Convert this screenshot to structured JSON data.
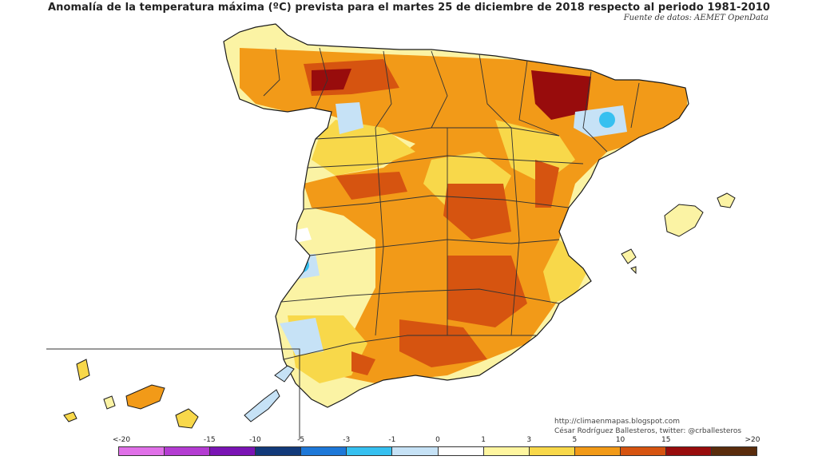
{
  "title": "Anomalía de la temperatura máxima (ºC) prevista para el martes 25 de diciembre de 2018 respecto al periodo 1981-2010",
  "source": "Fuente de datos: AEMET OpenData",
  "credit": {
    "url": "http://climaenmapas.blogspot.com",
    "author": "César Rodríguez Ballesteros, twitter: @crballesteros"
  },
  "legend": {
    "labels": [
      "<-20",
      "-15",
      "-10",
      "-5",
      "-3",
      "-1",
      "0",
      "1",
      "3",
      "5",
      "10",
      "15",
      ">20"
    ],
    "colors": [
      "#e070e8",
      "#b43cd2",
      "#7a14b4",
      "#123a7a",
      "#1e78d8",
      "#36c0f0",
      "#c6e2f6",
      "#ffffff",
      "#fff6a0",
      "#f8d84a",
      "#f29a18",
      "#d65410",
      "#980c0c",
      "#5a2c0c"
    ]
  },
  "map_colors": {
    "background_land": "#fbf3a4",
    "pale_yellow": "#fff6a0",
    "yellow": "#f8d84a",
    "orange": "#f29a18",
    "dark_orange": "#d65410",
    "red": "#980c0c",
    "pale_blue": "#c6e2f6",
    "cyan": "#36c0f0",
    "outline": "#1a1a1a"
  }
}
